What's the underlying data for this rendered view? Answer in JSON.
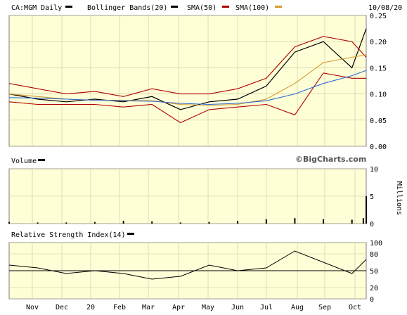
{
  "chart_data": [
    {
      "type": "line",
      "title": "CA:MGM Daily",
      "date_label": "10/08/20",
      "legend": [
        {
          "name": "CA:MGM Daily",
          "color": "#000000"
        },
        {
          "name": "Bollinger Bands(20)",
          "color": "#000000"
        },
        {
          "name": "SMA(50)",
          "color": "#b00000"
        },
        {
          "name": "SMA(100)",
          "color": "#d49a2a"
        }
      ],
      "x_ticks": [
        "Nov",
        "Dec",
        "20",
        "Feb",
        "Mar",
        "Apr",
        "May",
        "Jun",
        "Jul",
        "Aug",
        "Sep",
        "Oct"
      ],
      "y_ticks": [
        "0.25",
        "0.20",
        "0.15",
        "0.10",
        "0.05",
        "0.00"
      ],
      "ylim": [
        0,
        0.25
      ],
      "grid": true,
      "x_index": [
        0,
        20,
        40,
        60,
        80,
        100,
        120,
        140,
        160,
        180,
        200,
        220,
        240,
        250
      ],
      "series": [
        {
          "role": "price",
          "color": "#000000",
          "values": [
            0.1,
            0.09,
            0.085,
            0.09,
            0.085,
            0.095,
            0.07,
            0.085,
            0.09,
            0.115,
            0.18,
            0.2,
            0.15,
            0.225
          ]
        },
        {
          "role": "bollinger-upper",
          "color": "#b00000",
          "values": [
            0.12,
            0.11,
            0.1,
            0.105,
            0.095,
            0.11,
            0.1,
            0.1,
            0.11,
            0.13,
            0.19,
            0.21,
            0.2,
            0.17
          ]
        },
        {
          "role": "bollinger-lower",
          "color": "#b00000",
          "values": [
            0.085,
            0.08,
            0.08,
            0.08,
            0.075,
            0.08,
            0.045,
            0.07,
            0.075,
            0.08,
            0.06,
            0.14,
            0.13,
            0.13
          ]
        },
        {
          "role": "sma50",
          "color": "#d49a2a",
          "values": [
            0.1,
            0.095,
            0.09,
            0.088,
            0.088,
            0.087,
            0.08,
            0.078,
            0.08,
            0.09,
            0.12,
            0.16,
            0.17,
            0.175
          ]
        },
        {
          "role": "sma100",
          "color": "#2a6ad4",
          "values": [
            0.093,
            0.092,
            0.09,
            0.088,
            0.087,
            0.086,
            0.082,
            0.08,
            0.082,
            0.087,
            0.1,
            0.12,
            0.135,
            0.145
          ]
        }
      ]
    },
    {
      "type": "bar",
      "title": "Volume",
      "credit": "©BigCharts.com",
      "y_ticks": [
        "10",
        "5",
        "0"
      ],
      "y_unit": "Millions",
      "ylim": [
        0,
        10
      ],
      "x_index": [
        0,
        20,
        40,
        60,
        80,
        100,
        120,
        140,
        160,
        180,
        200,
        220,
        240,
        248,
        250
      ],
      "values": [
        0.3,
        0.2,
        0.2,
        0.3,
        0.5,
        0.4,
        0.2,
        0.3,
        0.5,
        0.8,
        1.0,
        0.8,
        0.7,
        1.0,
        5.0
      ]
    },
    {
      "type": "line",
      "title": "Relative Strength Index(14)",
      "y_ticks": [
        "100",
        "80",
        "50",
        "20",
        "0"
      ],
      "ylim": [
        0,
        100
      ],
      "reference_lines": [
        50
      ],
      "x_index": [
        0,
        20,
        40,
        60,
        80,
        100,
        120,
        140,
        160,
        180,
        200,
        220,
        240,
        250
      ],
      "values": [
        60,
        55,
        45,
        50,
        45,
        35,
        40,
        60,
        50,
        55,
        85,
        65,
        45,
        70
      ]
    }
  ]
}
